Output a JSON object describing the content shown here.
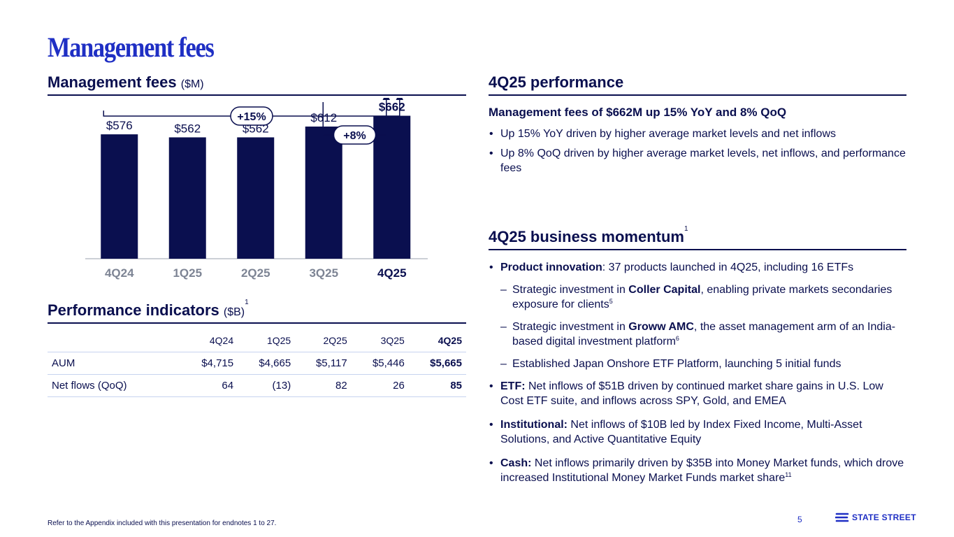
{
  "page": {
    "title": "Management fees",
    "page_number": "5",
    "footnote": "Refer to the Appendix included with this presentation for endnotes 1 to 27.",
    "logo_text": "STATE STREET",
    "logo_icon": "state-street-logo-icon"
  },
  "colors": {
    "navy": "#0a0f4f",
    "brand_blue": "#1f2fc4",
    "bar": "#0a0f4f",
    "tick_gray": "#7d8494",
    "rule_light": "#c7d3ef"
  },
  "left": {
    "chart_heading": "Management fees",
    "chart_heading_unit": "($M)",
    "table_heading": "Performance indicators",
    "table_heading_unit": "($B)",
    "table_heading_sup": "1"
  },
  "chart_data": {
    "type": "bar",
    "title": "Management fees ($M)",
    "categories": [
      "4Q24",
      "1Q25",
      "2Q25",
      "3Q25",
      "4Q25"
    ],
    "values": [
      576,
      562,
      562,
      612,
      662
    ],
    "value_labels": [
      "$576",
      "$562",
      "$562",
      "$612",
      "$662"
    ],
    "highlight_index": 4,
    "ylim": [
      0,
      680
    ],
    "xlabel": "",
    "ylabel": "",
    "annotations": [
      {
        "label": "+15%",
        "from": "4Q24",
        "to": "4Q25"
      },
      {
        "label": "+8%",
        "from": "3Q25",
        "to": "4Q25"
      }
    ]
  },
  "table": {
    "columns": [
      "",
      "4Q24",
      "1Q25",
      "2Q25",
      "3Q25",
      "4Q25"
    ],
    "rows": [
      [
        "AUM",
        "$4,715",
        "$4,665",
        "$5,117",
        "$5,446",
        "$5,665"
      ],
      [
        "Net flows (QoQ)",
        "64",
        "(13)",
        "82",
        "26",
        "85"
      ]
    ]
  },
  "right": {
    "performance_heading": "4Q25 performance",
    "performance_subheading": "Management fees of $662M up 15% YoY and 8% QoQ",
    "performance_bullets": [
      "Up 15% YoY driven by higher average market levels and net inflows",
      "Up 8% QoQ driven by higher average market levels, net inflows, and performance fees"
    ],
    "momentum_heading": "4Q25 business momentum",
    "momentum_heading_sup": "1",
    "momentum": {
      "b1_bold": "Product innovation",
      "b1_text": ": 37 products launched in 4Q25, including 16 ETFs",
      "d1_pre": "Strategic investment in ",
      "d1_bold": "Coller Capital",
      "d1_post": ", enabling private markets secondaries exposure for clients",
      "d1_sup": "5",
      "d2_pre": "Strategic investment in ",
      "d2_bold": "Groww AMC",
      "d2_post": ", the asset management arm of an India-based digital investment platform",
      "d2_sup": "6",
      "d3_text": "Established Japan Onshore ETF Platform, launching 5 initial funds",
      "b2_bold": "ETF:",
      "b2_text": " Net inflows of $51B driven by continued market share gains in U.S. Low Cost ETF suite, and inflows across SPY, Gold, and EMEA",
      "b3_bold": "Institutional:",
      "b3_text": " Net inflows of $10B led by Index Fixed Income, Multi-Asset Solutions, and Active Quantitative Equity",
      "b4_bold": "Cash:",
      "b4_text": " Net inflows primarily driven by $35B into Money Market funds, which drove increased Institutional Money Market Funds market share",
      "b4_sup": "11"
    }
  }
}
